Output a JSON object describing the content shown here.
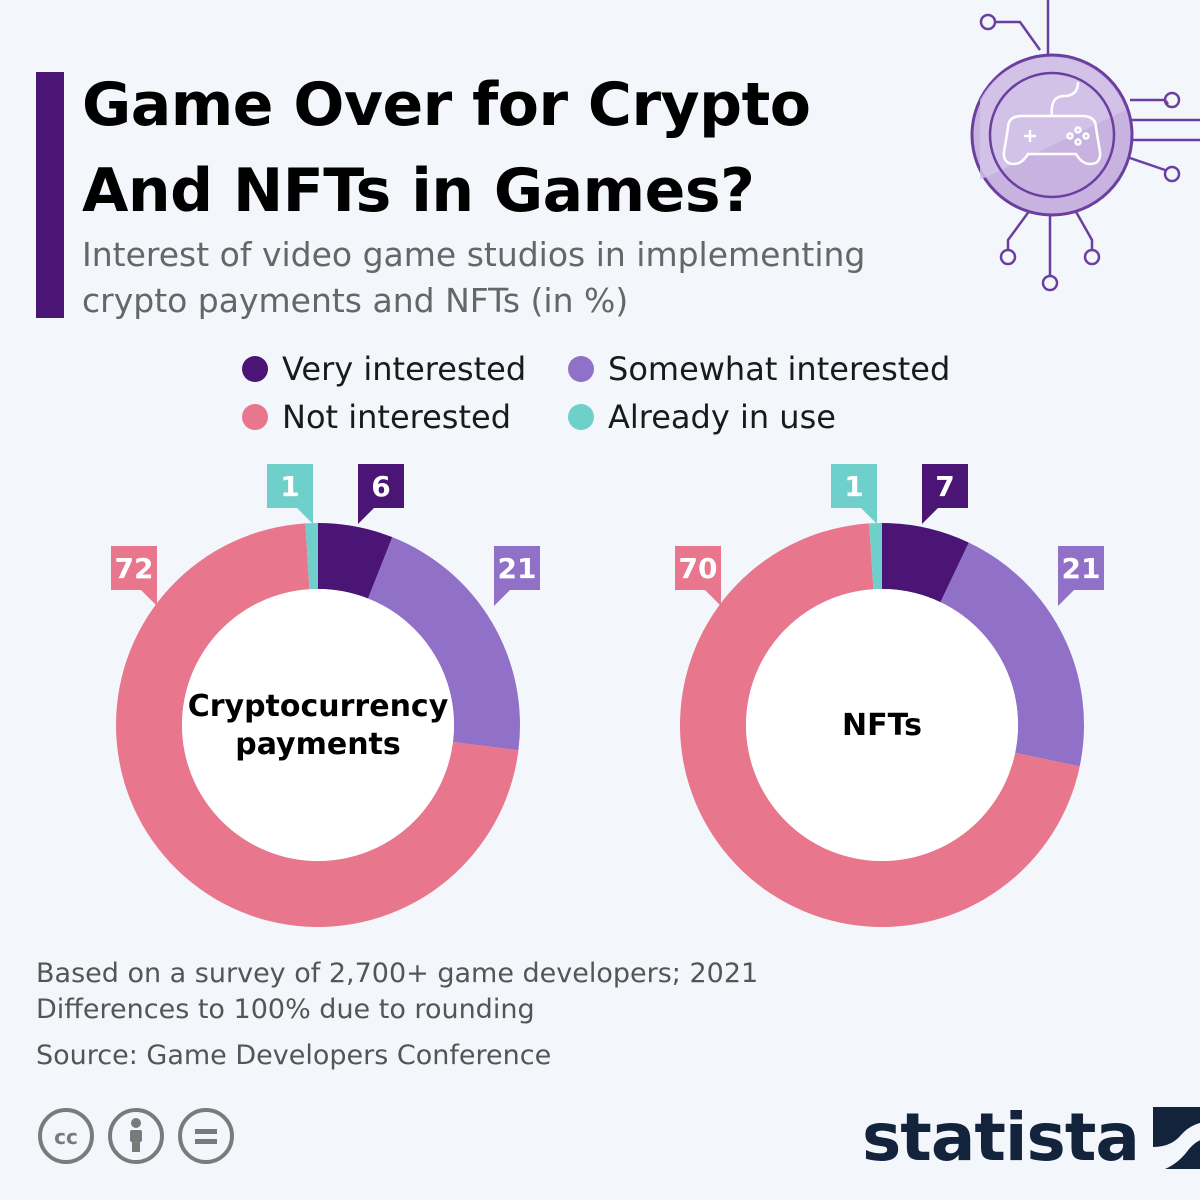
{
  "title": "Game Over for Crypto And NFTs in Games?",
  "subtitle": "Interest of video game studios in implementing crypto payments and NFTs (in %)",
  "legend": [
    {
      "label": "Very interested",
      "color": "#4a1574"
    },
    {
      "label": "Somewhat interested",
      "color": "#9170c8"
    },
    {
      "label": "Not interested",
      "color": "#e8768d"
    },
    {
      "label": "Already in use",
      "color": "#6fd0cb"
    }
  ],
  "chart_data": [
    {
      "type": "pie",
      "title": "Cryptocurrency payments",
      "series": [
        {
          "name": "Very interested",
          "value": 6,
          "color": "#4a1574"
        },
        {
          "name": "Somewhat interested",
          "value": 21,
          "color": "#9170c8"
        },
        {
          "name": "Not interested",
          "value": 72,
          "color": "#e8768d"
        },
        {
          "name": "Already in use",
          "value": 1,
          "color": "#6fd0cb"
        }
      ],
      "center_label": [
        "Cryptocurrency",
        "payments"
      ]
    },
    {
      "type": "pie",
      "title": "NFTs",
      "series": [
        {
          "name": "Very interested",
          "value": 7,
          "color": "#4a1574"
        },
        {
          "name": "Somewhat interested",
          "value": 21,
          "color": "#9170c8"
        },
        {
          "name": "Not interested",
          "value": 70,
          "color": "#e8768d"
        },
        {
          "name": "Already in use",
          "value": 1,
          "color": "#6fd0cb"
        }
      ],
      "center_label": [
        "NFTs"
      ]
    }
  ],
  "notes": {
    "line1": "Based on a survey of 2,700+ game developers; 2021",
    "line2": "Differences to 100% due to rounding",
    "source": "Source: Game Developers Conference"
  },
  "brand": {
    "name": "statista",
    "color": "#14233c"
  }
}
